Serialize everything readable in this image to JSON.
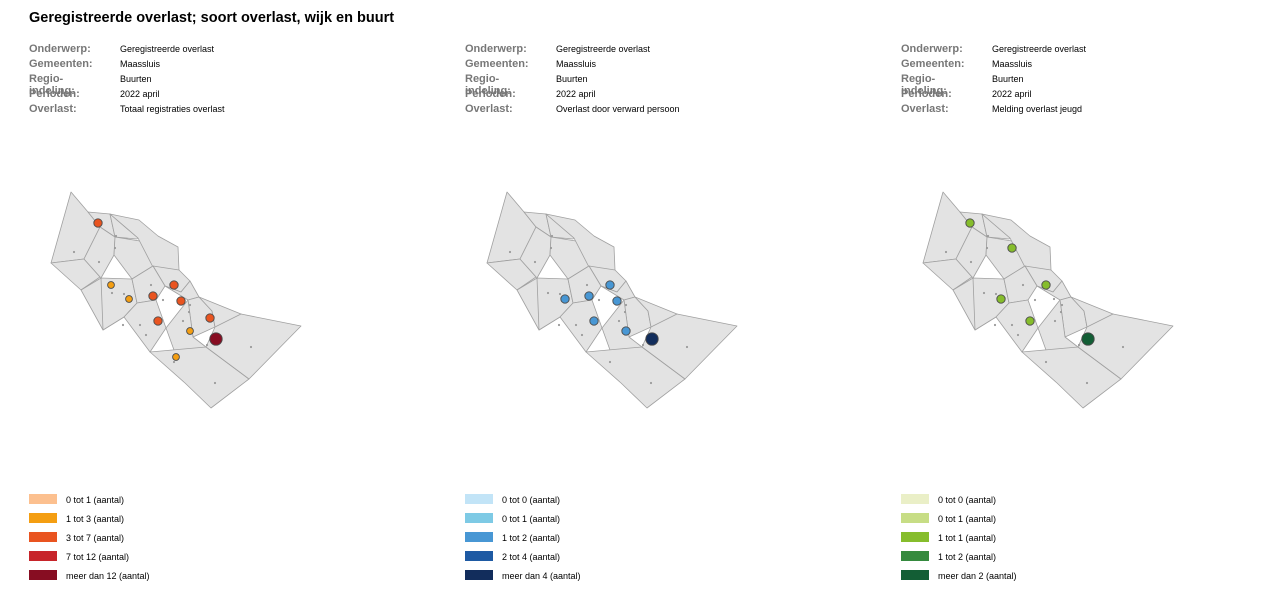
{
  "title": "Geregistreerde overlast; soort overlast, wijk en buurt",
  "panels": [
    {
      "meta": [
        {
          "key": "Onderwerp:",
          "value": "Geregistreerde overlast"
        },
        {
          "key": "Gemeenten:",
          "value": "Maassluis"
        },
        {
          "key": "Regio-indeling:",
          "value": "Buurten"
        },
        {
          "key": "Perioden:",
          "value": "2022 april"
        },
        {
          "key": "Overlast:",
          "value": "Totaal registraties overlast"
        }
      ],
      "legend": [
        {
          "label": "0 tot 1 (aantal)",
          "color": "#fcc08f"
        },
        {
          "label": "1 tot 3 (aantal)",
          "color": "#f49e12"
        },
        {
          "label": "3 tot 7 (aantal)",
          "color": "#e95420"
        },
        {
          "label": "7 tot 12 (aantal)",
          "color": "#c7242a"
        },
        {
          "label": "meer dan 12 (aantal)",
          "color": "#870d22"
        }
      ],
      "neighbourhood_classes": [
        2,
        0,
        1,
        null,
        1,
        2,
        2,
        2,
        1,
        0,
        2,
        2,
        1,
        4,
        0,
        1,
        0,
        0
      ]
    },
    {
      "meta": [
        {
          "key": "Onderwerp:",
          "value": "Geregistreerde overlast"
        },
        {
          "key": "Gemeenten:",
          "value": "Maassluis"
        },
        {
          "key": "Regio-indeling:",
          "value": "Buurten"
        },
        {
          "key": "Perioden:",
          "value": "2022 april"
        },
        {
          "key": "Overlast:",
          "value": "Overlast door verward persoon"
        }
      ],
      "legend": [
        {
          "label": "0 tot 0 (aantal)",
          "color": "#c2e4f7"
        },
        {
          "label": "0 tot 1 (aantal)",
          "color": "#7ecae5"
        },
        {
          "label": "1 tot 2 (aantal)",
          "color": "#4897d4"
        },
        {
          "label": "2 tot 4 (aantal)",
          "color": "#1e5aa3"
        },
        {
          "label": "meer dan 4 (aantal)",
          "color": "#122d5c"
        }
      ],
      "neighbourhood_classes": [
        0,
        0,
        0,
        0,
        2,
        2,
        2,
        2,
        0,
        0,
        2,
        0,
        2,
        4,
        0,
        0,
        0,
        0
      ]
    },
    {
      "meta": [
        {
          "key": "Onderwerp:",
          "value": "Geregistreerde overlast"
        },
        {
          "key": "Gemeenten:",
          "value": "Maassluis"
        },
        {
          "key": "Regio-indeling:",
          "value": "Buurten"
        },
        {
          "key": "Perioden:",
          "value": "2022 april"
        },
        {
          "key": "Overlast:",
          "value": "Melding overlast jeugd"
        }
      ],
      "legend": [
        {
          "label": "0 tot 0 (aantal)",
          "color": "#eaefc7"
        },
        {
          "label": "0 tot 1 (aantal)",
          "color": "#c7dd85"
        },
        {
          "label": "1 tot 1 (aantal)",
          "color": "#86bd2c"
        },
        {
          "label": "1 tot 2 (aantal)",
          "color": "#358a3e"
        },
        {
          "label": "meer dan 2 (aantal)",
          "color": "#135e35"
        }
      ],
      "neighbourhood_classes": [
        2,
        2,
        0,
        0,
        2,
        0,
        2,
        0,
        0,
        0,
        2,
        0,
        0,
        4,
        0,
        0,
        0,
        0
      ]
    }
  ]
}
